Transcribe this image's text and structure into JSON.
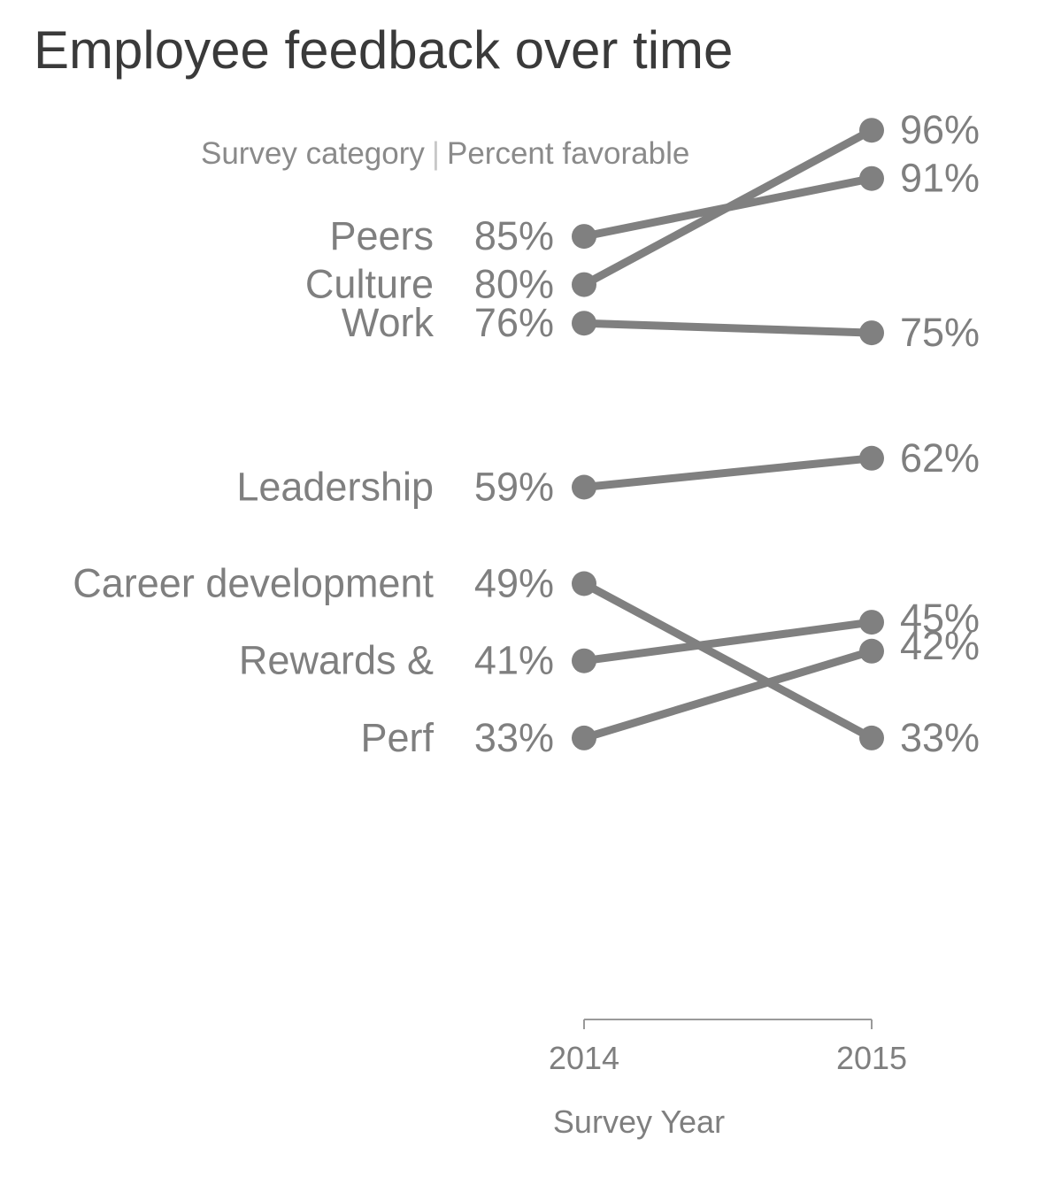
{
  "chart_data": {
    "type": "line",
    "title": "Employee feedback over time",
    "subtitle_left": "Survey category",
    "subtitle_separator": "|",
    "subtitle_right": "Percent favorable",
    "x": [
      "2014",
      "2015"
    ],
    "xlabel": "Survey Year",
    "ylabel": "",
    "ylim": [
      30,
      98
    ],
    "grid": false,
    "colors": {
      "line": "#808080",
      "text": "#7f7f7f",
      "title": "#3a3a3a",
      "axis": "#9a9a9a"
    },
    "series": [
      {
        "name": "Peers",
        "values": [
          85,
          91
        ],
        "labels": [
          "85%",
          "91%"
        ]
      },
      {
        "name": "Culture",
        "values": [
          80,
          96
        ],
        "labels": [
          "80%",
          "96%"
        ]
      },
      {
        "name": "Work",
        "values": [
          76,
          75
        ],
        "labels": [
          "76%",
          "75%"
        ]
      },
      {
        "name": "Leadership",
        "values": [
          59,
          62
        ],
        "labels": [
          "59%",
          "62%"
        ]
      },
      {
        "name": "Career development",
        "values": [
          49,
          33
        ],
        "labels": [
          "49%",
          "33%"
        ]
      },
      {
        "name": "Rewards &",
        "values": [
          41,
          45
        ],
        "labels": [
          "41%",
          "45%"
        ]
      },
      {
        "name": "Perf",
        "values": [
          33,
          42
        ],
        "labels": [
          "33%",
          "42%"
        ]
      }
    ]
  }
}
